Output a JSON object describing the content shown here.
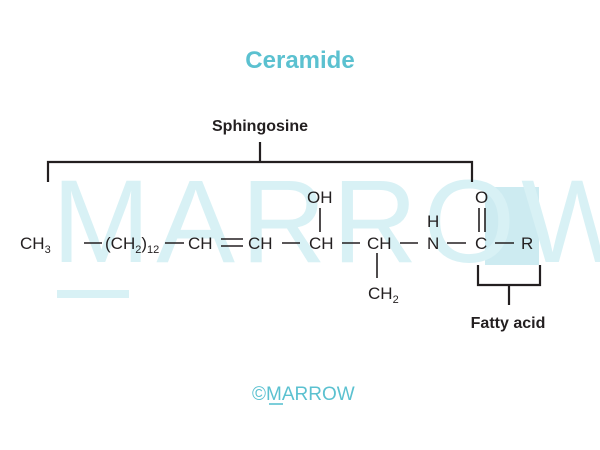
{
  "title": "Ceramide",
  "colors": {
    "title": "#5bc1d0",
    "text": "#231f20",
    "watermark": "#d8f1f5",
    "watermark_box": "#cdebf1",
    "copyright": "#5bc1d0"
  },
  "watermark": {
    "text": "MARROW"
  },
  "sphingosine": {
    "label": "Sphingosine"
  },
  "fatty_acid": {
    "label": "Fatty acid"
  },
  "structure": {
    "ch3": "CH",
    "ch3_sub": "3",
    "ch2_chain": "(CH",
    "ch2_chain_sub": "2",
    "ch2_chain_close": ")",
    "ch2_chain_count": "12",
    "ch_1": "CH",
    "ch_2": "CH",
    "ch_oh": "CH",
    "oh": "OH",
    "ch_amine": "CH",
    "n": "N",
    "h": "H",
    "c": "C",
    "o": "O",
    "r": "R",
    "ch2_branch": "CH",
    "ch2_branch_sub": "2"
  },
  "copyright": {
    "symbol": "©",
    "brand_first": "M",
    "brand_rest": "ARROW"
  }
}
